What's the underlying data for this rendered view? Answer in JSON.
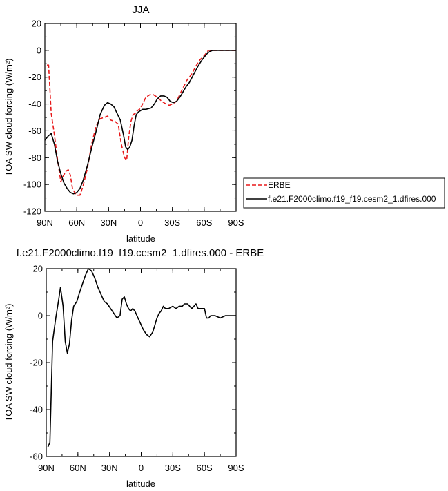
{
  "chart_data": [
    {
      "type": "line",
      "title": "JJA",
      "xlabel": "latitude",
      "ylabel": "TOA SW cloud forcing (W/m²)",
      "ylim": [
        -120,
        20
      ],
      "xlim": [
        90,
        -90
      ],
      "xticks": [
        {
          "value": 90,
          "label": "90N"
        },
        {
          "value": 60,
          "label": "60N"
        },
        {
          "value": 30,
          "label": "30N"
        },
        {
          "value": 0,
          "label": "0"
        },
        {
          "value": -30,
          "label": "30S"
        },
        {
          "value": -60,
          "label": "60S"
        },
        {
          "value": -90,
          "label": "90S"
        }
      ],
      "yticks": [
        20,
        0,
        -20,
        -40,
        -60,
        -80,
        -100,
        -120
      ],
      "legend": "right",
      "series": [
        {
          "name": "ERBE",
          "color": "#e8191a",
          "style": "dashed",
          "x": [
            88,
            86.5,
            84,
            81,
            78,
            75,
            73,
            70,
            68,
            66,
            64,
            62,
            60,
            57,
            54,
            50,
            46,
            42,
            38,
            34,
            31,
            28,
            24,
            21,
            18,
            15,
            13,
            11,
            9,
            7,
            5,
            3,
            1,
            0,
            -2,
            -5,
            -9,
            -12,
            -16,
            -20,
            -24,
            -27,
            -30,
            -34,
            -37,
            -40,
            -44,
            -48,
            -52,
            -56,
            -60,
            -62,
            -64,
            -66,
            -68,
            -70,
            -75,
            -80,
            -85,
            -90
          ],
          "y": [
            -11,
            -11,
            -47,
            -63,
            -82,
            -98,
            -94,
            -90,
            -89,
            -93,
            -103,
            -106,
            -108,
            -108,
            -101,
            -88,
            -70,
            -57,
            -51,
            -50,
            -49,
            -52,
            -53,
            -55,
            -70,
            -80,
            -82,
            -64,
            -53,
            -48,
            -47,
            -45,
            -44,
            -43,
            -40,
            -35,
            -33,
            -33,
            -35,
            -38,
            -40,
            -41,
            -40,
            -38,
            -33,
            -28,
            -22,
            -18,
            -12,
            -7,
            -4,
            -2,
            0,
            0,
            0,
            0,
            0,
            0,
            0,
            0
          ]
        },
        {
          "name": "f.e21.F2000climo.f19_f19.cesm2_1.dfires.000",
          "color": "#000000",
          "style": "solid",
          "x": [
            90,
            87,
            84,
            81,
            78,
            75,
            72,
            69,
            66,
            63,
            60,
            57,
            54,
            50,
            46,
            42,
            38,
            34,
            31,
            28,
            25,
            22,
            19,
            16,
            14,
            12,
            10,
            8,
            6,
            4,
            2,
            0,
            -2,
            -5,
            -10,
            -13,
            -16,
            -19,
            -22,
            -25,
            -28,
            -31,
            -34,
            -37,
            -40,
            -43,
            -46,
            -50,
            -54,
            -58,
            -62,
            -65,
            -68,
            -70,
            -75,
            -80,
            -85,
            -90
          ],
          "y": [
            -67,
            -64,
            -62,
            -70,
            -83,
            -92,
            -99,
            -103,
            -106,
            -107,
            -106,
            -103,
            -97,
            -86,
            -73,
            -61,
            -48,
            -41,
            -39,
            -40,
            -42,
            -47,
            -52,
            -63,
            -72,
            -74,
            -72,
            -67,
            -56,
            -48,
            -46,
            -45,
            -44,
            -44,
            -43,
            -40,
            -36,
            -34,
            -34,
            -35,
            -38,
            -39,
            -38,
            -35,
            -31,
            -27,
            -24,
            -18,
            -12,
            -7,
            -3,
            -1,
            0,
            0,
            0,
            0,
            0,
            0
          ]
        }
      ]
    },
    {
      "type": "line",
      "title": "f.e21.F2000climo.f19_f19.cesm2_1.dfires.000 - ERBE",
      "xlabel": "latitude",
      "ylabel": "TOA SW cloud forcing (W/m²)",
      "ylim": [
        -60,
        20
      ],
      "xlim": [
        90,
        -90
      ],
      "xticks": [
        {
          "value": 90,
          "label": "90N"
        },
        {
          "value": 60,
          "label": "60N"
        },
        {
          "value": 30,
          "label": "30N"
        },
        {
          "value": 0,
          "label": "0"
        },
        {
          "value": -30,
          "label": "30S"
        },
        {
          "value": -60,
          "label": "60S"
        },
        {
          "value": -90,
          "label": "90S"
        }
      ],
      "yticks": [
        20,
        0,
        -20,
        -40,
        -60
      ],
      "series": [
        {
          "color": "#000000",
          "style": "solid",
          "x": [
            88.5,
            86.5,
            84,
            81,
            78.5,
            76.5,
            74,
            72,
            70,
            68,
            66,
            64,
            61,
            59,
            56,
            53,
            50,
            47,
            44,
            41,
            38,
            35,
            32,
            29,
            26,
            23,
            20,
            18,
            16,
            14,
            12,
            10,
            8,
            6,
            4,
            2,
            0,
            -2,
            -5,
            -8,
            -11,
            -13,
            -15,
            -17,
            -19,
            -21,
            -23,
            -26,
            -30,
            -33,
            -36,
            -39,
            -41,
            -44,
            -46,
            -48,
            -50,
            -52,
            -54,
            -57,
            -60,
            -62,
            -64,
            -66,
            -68,
            -70,
            -75,
            -80,
            -85,
            -90
          ],
          "y": [
            -56,
            -54,
            -11,
            -1,
            6,
            12,
            4,
            -11,
            -16,
            -12,
            -2,
            4,
            6,
            9,
            13,
            17,
            20,
            19,
            16,
            12,
            9,
            6,
            5,
            3,
            1,
            -1,
            0,
            7,
            8,
            5,
            3,
            2,
            3,
            2,
            0,
            -2,
            -4,
            -6,
            -8,
            -9,
            -7,
            -4,
            -1,
            1,
            2,
            4,
            3,
            3,
            4,
            3,
            4,
            4,
            5,
            5,
            4,
            3,
            4,
            5,
            3,
            3,
            3,
            -1,
            -1,
            0,
            0,
            0,
            -1,
            0,
            0,
            0
          ]
        }
      ]
    }
  ]
}
